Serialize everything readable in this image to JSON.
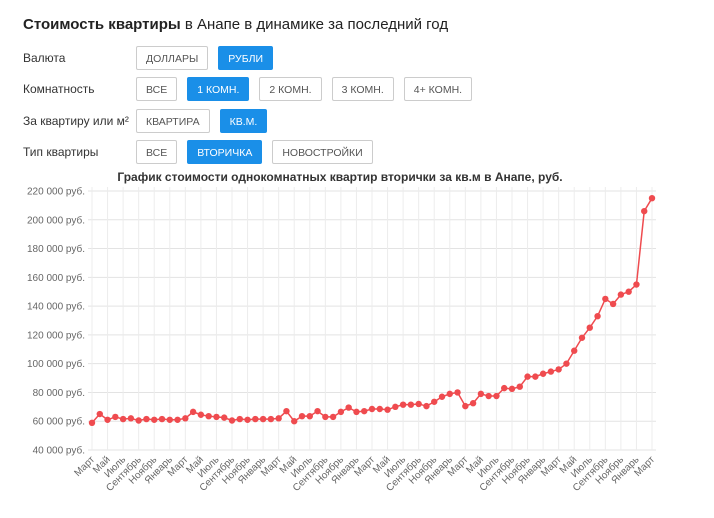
{
  "header": {
    "title_bold": "Стоимость квартиры",
    "title_rest": "в Анапе в динамике за последний год"
  },
  "filters": [
    {
      "label": "Валюта",
      "options": [
        {
          "text": "ДОЛЛАРЫ",
          "active": false
        },
        {
          "text": "РУБЛИ",
          "active": true
        }
      ]
    },
    {
      "label": "Комнатность",
      "options": [
        {
          "text": "ВСЕ",
          "active": false
        },
        {
          "text": "1 КОМН.",
          "active": true
        },
        {
          "text": "2 КОМН.",
          "active": false
        },
        {
          "text": "3 КОМН.",
          "active": false
        },
        {
          "text": "4+ КОМН.",
          "active": false
        }
      ]
    },
    {
      "label": "За квартиру или м²",
      "options": [
        {
          "text": "КВАРТИРА",
          "active": false
        },
        {
          "text": "КВ.М.",
          "active": true
        }
      ]
    },
    {
      "label": "Тип квартиры",
      "options": [
        {
          "text": "ВСЕ",
          "active": false
        },
        {
          "text": "ВТОРИЧКА",
          "active": true
        },
        {
          "text": "НОВОСТРОЙКИ",
          "active": false
        }
      ]
    }
  ],
  "chart_data": {
    "type": "line",
    "title": "График стоимости однокомнатных квартир вторички за кв.м в Анапе, руб.",
    "categories": [
      "Март",
      null,
      "Май",
      null,
      "Июль",
      null,
      "Сентябрь",
      null,
      "Ноябрь",
      null,
      "Январь",
      null,
      "Март",
      null,
      "Май",
      null,
      "Июль",
      null,
      "Сентябрь",
      null,
      "Ноябрь",
      null,
      "Январь",
      null,
      "Март",
      null,
      "Май",
      null,
      "Июль",
      null,
      "Сентябрь",
      null,
      "Ноябрь",
      null,
      "Январь",
      null,
      "Март",
      null,
      "Май",
      null,
      "Июль",
      null,
      "Сентябрь",
      null,
      "Ноябрь",
      null,
      "Январь",
      null,
      "Март",
      null,
      "Май",
      null,
      "Июль",
      null,
      "Сентябрь",
      null,
      "Ноябрь",
      null,
      "Январь",
      null,
      "Март",
      null,
      "Май",
      null,
      "Июль",
      null,
      "Сентябрь",
      null,
      "Ноябрь",
      null,
      "Январь",
      null,
      "Март"
    ],
    "values": [
      58900,
      65000,
      61000,
      63000,
      61500,
      62000,
      60500,
      61500,
      61000,
      61500,
      61000,
      61000,
      62000,
      66500,
      64500,
      63500,
      63000,
      62500,
      60500,
      61500,
      61000,
      61500,
      61500,
      61500,
      62000,
      67000,
      60000,
      63500,
      63500,
      67000,
      63000,
      63000,
      66500,
      69500,
      66500,
      67000,
      68500,
      68500,
      68000,
      70000,
      71500,
      71500,
      72000,
      70500,
      73500,
      77000,
      79000,
      80000,
      70500,
      72500,
      79000,
      77500,
      77500,
      83000,
      82500,
      84000,
      91000,
      91000,
      93000,
      94500,
      96000,
      100000,
      109000,
      118000,
      125000,
      133000,
      145000,
      141500,
      148000,
      150000,
      155000,
      206000,
      215000
    ],
    "color": "#ef4b4f",
    "ylim": [
      40000,
      220000
    ],
    "yticks": [
      {
        "value": 40000,
        "label": "40 000 руб."
      },
      {
        "value": 60000,
        "label": "60 000 руб."
      },
      {
        "value": 80000,
        "label": "80 000 руб."
      },
      {
        "value": 100000,
        "label": "100 000 руб."
      },
      {
        "value": 120000,
        "label": "120 000 руб."
      },
      {
        "value": 140000,
        "label": "140 000 руб."
      },
      {
        "value": 160000,
        "label": "160 000 руб."
      },
      {
        "value": 180000,
        "label": "180 000 руб."
      },
      {
        "value": 200000,
        "label": "200 000 руб."
      },
      {
        "value": 220000,
        "label": "220 000 руб."
      }
    ],
    "grid": true
  }
}
